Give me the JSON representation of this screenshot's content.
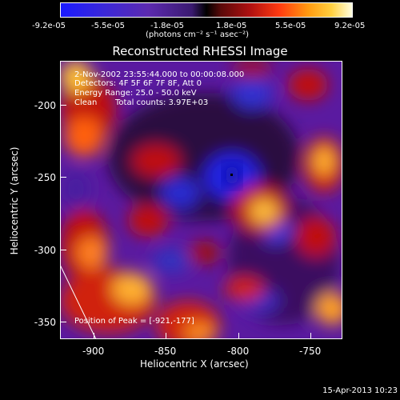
{
  "colorbar": {
    "ticks": [
      "-9.2e-05",
      "-5.5e-05",
      "-1.8e-05",
      "1.8e-05",
      "5.5e-05",
      "9.2e-05"
    ],
    "unit_label": "(photons cm⁻² s⁻¹ asec⁻²)"
  },
  "title": "Reconstructed RHESSI Image",
  "plot": {
    "date_range": "2-Nov-2002 23:55:44.000 to 00:00:08.000",
    "detectors": "Detectors: 4F 5F 6F 7F 8F, Att 0",
    "energy": "Energy Range: 25.0 - 50.0 keV",
    "method": "Clean",
    "counts": "Total counts: 3.97E+03",
    "peak": "Position of Peak = [-921,-177]"
  },
  "axes": {
    "x_title": "Heliocentric X (arcsec)",
    "y_title": "Heliocentric Y (arcsec)",
    "x_ticks": [
      "-900",
      "-850",
      "-800",
      "-750"
    ],
    "y_ticks": [
      "-200",
      "-250",
      "-300",
      "-350"
    ]
  },
  "footer": {
    "timestamp": "15-Apr-2013 10:23"
  }
}
